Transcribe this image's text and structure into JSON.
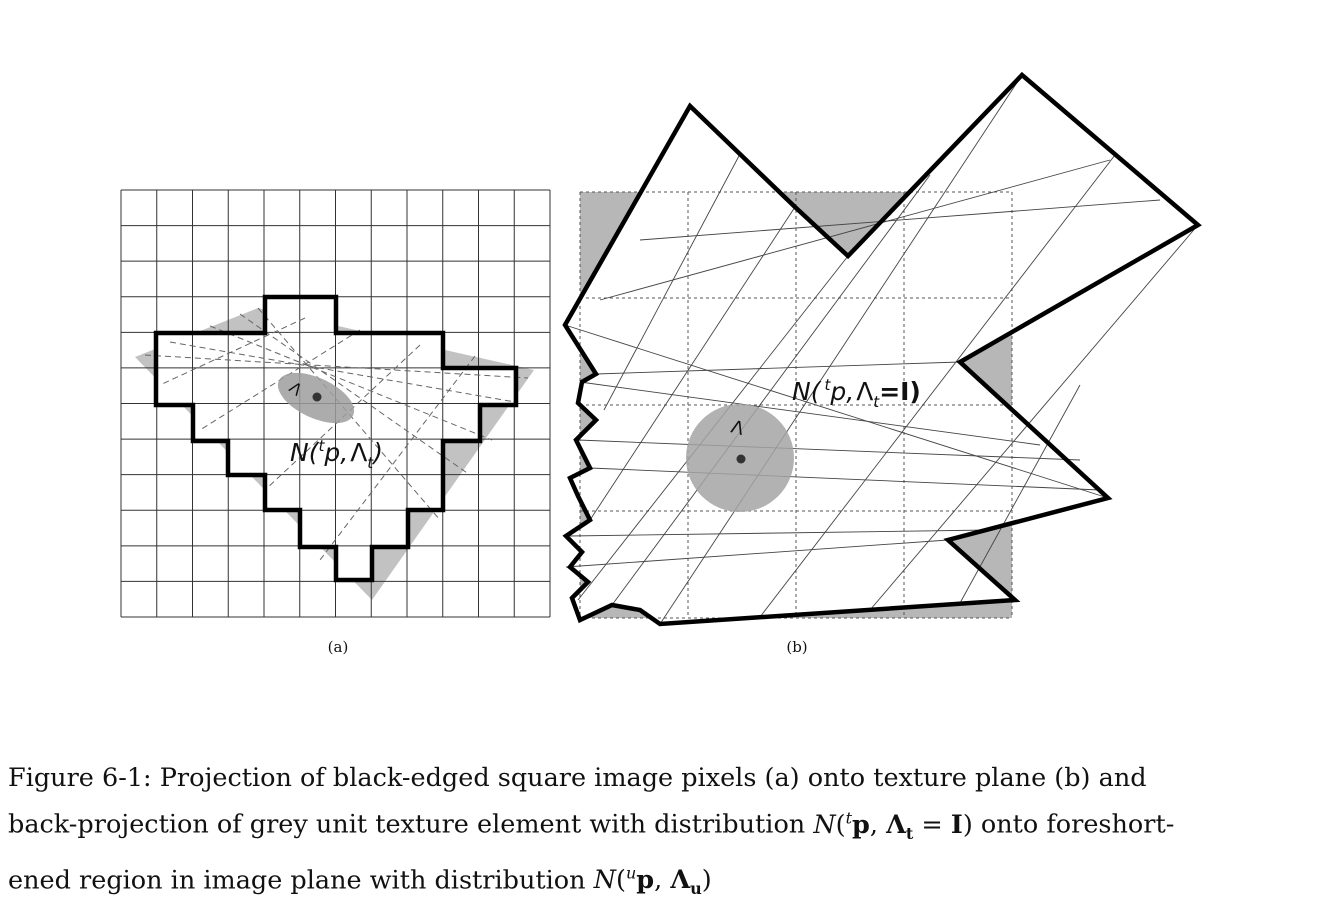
{
  "panel_a": {
    "label": "(a)",
    "annotation": {
      "N": "N(",
      "sup": "t",
      "p": "p,",
      "lambda": "Λ",
      "sub": "t",
      "close": ")"
    }
  },
  "panel_b": {
    "label": "(b)",
    "annotation": {
      "N": "N(",
      "sup": "t",
      "p": "p,",
      "lambda": "Λ",
      "sub": "t",
      "tail": "=I)"
    }
  },
  "caption": {
    "line1": "Figure 6-1: Projection of black-edged square image pixels (a) onto texture plane (b) and",
    "line2_pre": "back-projection of grey unit texture element with distribution ",
    "line2_post": " onto foreshort-",
    "line3_pre": "ened region in image plane with distribution ",
    "math1": {
      "N": "N",
      "sup": "t",
      "p": "p",
      "L": "Λ",
      "sub": "t",
      "eq": " = ",
      "I": "I"
    },
    "math2": {
      "N": "N",
      "sup": "u",
      "p": "p",
      "L": "Λ",
      "sub": "u"
    }
  }
}
